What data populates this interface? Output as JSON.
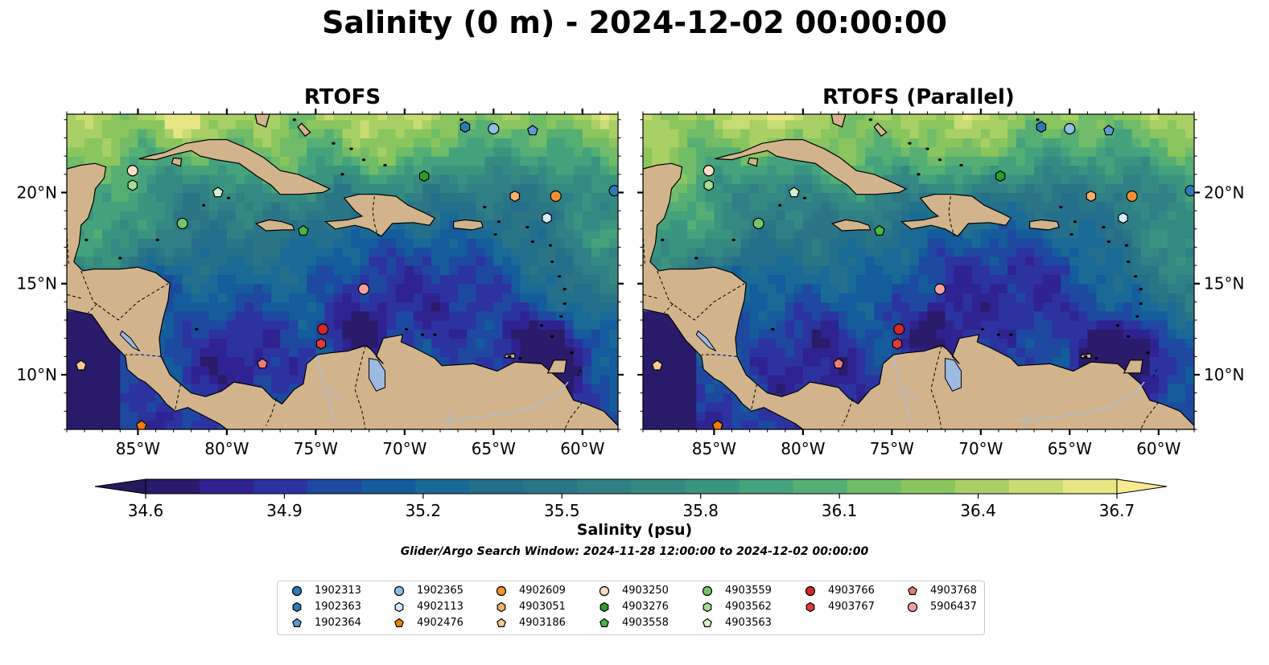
{
  "title": "Salinity (0 m) - 2024-12-02 00:00:00",
  "panels": [
    {
      "title": "RTOFS"
    },
    {
      "title": "RTOFS (Parallel)"
    }
  ],
  "map": {
    "lon_range": [
      -89,
      -58
    ],
    "lat_range": [
      7,
      24.3
    ],
    "lon_ticks": [
      -85,
      -80,
      -75,
      -70,
      -65,
      -60
    ],
    "lon_tick_labels": [
      "85°W",
      "80°W",
      "75°W",
      "70°W",
      "65°W",
      "60°W"
    ],
    "lat_ticks": [
      10,
      15,
      20
    ],
    "lat_tick_labels": [
      "10°N",
      "15°N",
      "20°N"
    ],
    "land_color": "#d2b48c",
    "lake_color": "#9cb9e0"
  },
  "colorbar": {
    "label": "Salinity (psu)",
    "ticks": [
      34.6,
      34.9,
      35.2,
      35.5,
      35.8,
      36.1,
      36.4,
      36.7
    ],
    "tick_labels": [
      "34.6",
      "34.9",
      "35.2",
      "35.5",
      "35.8",
      "36.1",
      "36.4",
      "36.7"
    ],
    "colors": [
      "#2a1a6a",
      "#2e2390",
      "#2c33a0",
      "#1e49a0",
      "#145c9c",
      "#1a6a96",
      "#236f8c",
      "#2b7686",
      "#2f7f85",
      "#348a82",
      "#3a9580",
      "#44a27c",
      "#55ae74",
      "#70bc68",
      "#8ac55e",
      "#a8d065",
      "#c8dc74",
      "#e8e684"
    ],
    "note": "Glider/Argo Search Window: 2024-11-28 12:00:00 to 2024-12-02 00:00:00"
  },
  "legend": [
    {
      "label": "1902313",
      "marker": "circle",
      "color": "#2c7bb6"
    },
    {
      "label": "1902363",
      "marker": "hexagon",
      "color": "#2c7bb6"
    },
    {
      "label": "1902364",
      "marker": "pentagon",
      "color": "#5b9bd5"
    },
    {
      "label": "1902365",
      "marker": "circle",
      "color": "#8fbfe6"
    },
    {
      "label": "4902113",
      "marker": "hexagon",
      "color": "#d6eaf8"
    },
    {
      "label": "4902476",
      "marker": "pentagon",
      "color": "#f07f00"
    },
    {
      "label": "4902609",
      "marker": "circle",
      "color": "#f39232"
    },
    {
      "label": "4903051",
      "marker": "hexagon",
      "color": "#f9b06b"
    },
    {
      "label": "4903186",
      "marker": "pentagon",
      "color": "#fcc890"
    },
    {
      "label": "4903250",
      "marker": "circle",
      "color": "#fbdcc4"
    },
    {
      "label": "4903276",
      "marker": "hexagon",
      "color": "#2a9d2a"
    },
    {
      "label": "4903558",
      "marker": "pentagon",
      "color": "#4cb648"
    },
    {
      "label": "4903559",
      "marker": "circle",
      "color": "#73c66b"
    },
    {
      "label": "4903562",
      "marker": "hexagon",
      "color": "#a6dd96"
    },
    {
      "label": "4903563",
      "marker": "pentagon",
      "color": "#d5f2c9"
    },
    {
      "label": "4903766",
      "marker": "circle",
      "color": "#d62728"
    },
    {
      "label": "4903767",
      "marker": "hexagon",
      "color": "#e03c3c"
    },
    {
      "label": "4903768",
      "marker": "pentagon",
      "color": "#ec7a7a"
    },
    {
      "label": "5906437",
      "marker": "circle",
      "color": "#f4a0a0"
    }
  ],
  "floats": [
    {
      "id": "1902313",
      "lon": -58.2,
      "lat": 20.1
    },
    {
      "id": "1902363",
      "lon": -66.6,
      "lat": 23.6
    },
    {
      "id": "1902364",
      "lon": -62.8,
      "lat": 23.4
    },
    {
      "id": "1902365",
      "lon": -65.0,
      "lat": 23.5
    },
    {
      "id": "4902113",
      "lon": -62.0,
      "lat": 18.6
    },
    {
      "id": "4902476",
      "lon": -84.8,
      "lat": 7.2
    },
    {
      "id": "4902609",
      "lon": -61.5,
      "lat": 19.8
    },
    {
      "id": "4903051",
      "lon": -63.8,
      "lat": 19.8
    },
    {
      "id": "4903186",
      "lon": -88.2,
      "lat": 10.5
    },
    {
      "id": "4903250",
      "lon": -85.3,
      "lat": 21.2
    },
    {
      "id": "4903276",
      "lon": -68.9,
      "lat": 20.9
    },
    {
      "id": "4903558",
      "lon": -75.7,
      "lat": 17.9
    },
    {
      "id": "4903559",
      "lon": -82.5,
      "lat": 18.3
    },
    {
      "id": "4903562",
      "lon": -85.3,
      "lat": 20.4
    },
    {
      "id": "4903563",
      "lon": -80.5,
      "lat": 20.0
    },
    {
      "id": "4903766",
      "lon": -74.6,
      "lat": 12.5
    },
    {
      "id": "4903767",
      "lon": -74.7,
      "lat": 11.7
    },
    {
      "id": "4903768",
      "lon": -78.0,
      "lat": 10.6
    },
    {
      "id": "5906437",
      "lon": -72.3,
      "lat": 14.7
    }
  ]
}
